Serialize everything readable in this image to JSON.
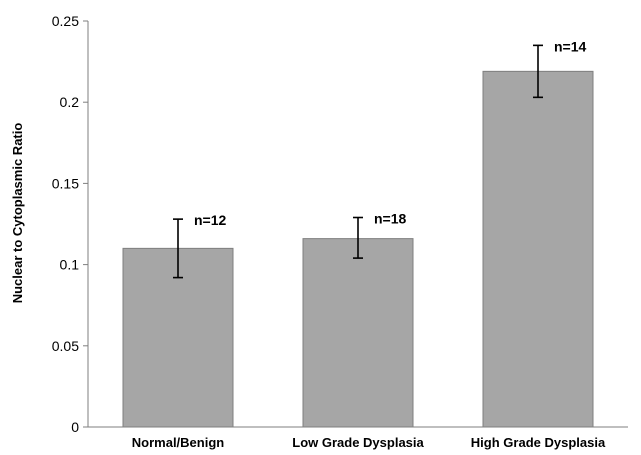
{
  "chart_data": {
    "type": "bar",
    "title": "",
    "xlabel": "",
    "ylabel": "Nuclear to Cytoplasmic Ratio",
    "ylim": [
      0,
      0.25
    ],
    "yticks": [
      "0",
      "0.05",
      "0.1",
      "0.15",
      "0.2",
      "0.25"
    ],
    "grid": false,
    "categories": [
      "Normal/Benign",
      "Low Grade Dysplasia",
      "High Grade Dysplasia"
    ],
    "values": [
      0.11,
      0.116,
      0.219
    ],
    "error_low": [
      0.092,
      0.104,
      0.203
    ],
    "error_high": [
      0.128,
      0.129,
      0.235
    ],
    "annotations": [
      "n=12",
      "n=18",
      "n=14"
    ],
    "colors": {
      "bar_fill": "#a6a6a6",
      "bar_stroke": "#7f7f7f",
      "axis": "#7f7f7f",
      "error": "#000000"
    }
  }
}
